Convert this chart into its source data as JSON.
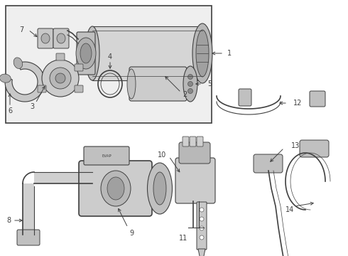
{
  "bg_color": "#ffffff",
  "box_fill": "#efefef",
  "line_color": "#404040",
  "gray_fill": "#c8c8c8",
  "dark_gray": "#888888",
  "light_gray": "#e0e0e0",
  "white": "#ffffff",
  "label_fs": 7,
  "lw": 0.8
}
